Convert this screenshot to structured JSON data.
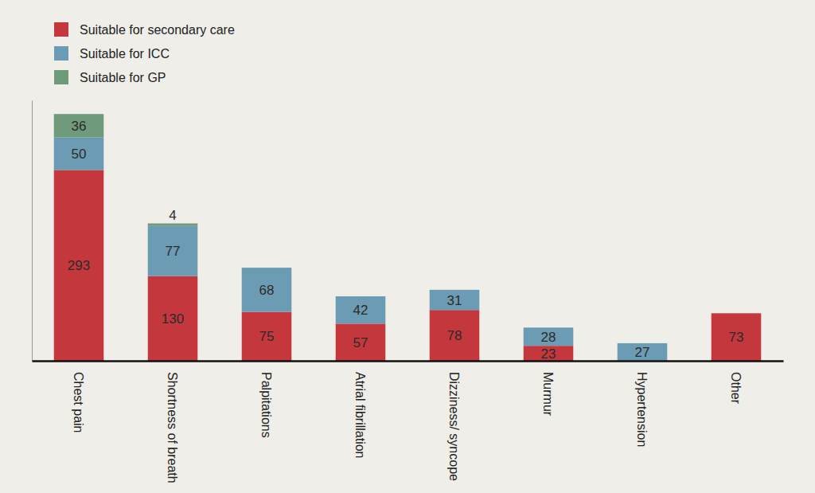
{
  "chart_data": {
    "type": "bar",
    "stacked": true,
    "data_labels": true,
    "tick_labels": "x",
    "legend": "top-left",
    "categories": [
      "Chest pain",
      "Shortness of breath",
      "Palpitations",
      "Atrial fibrillation",
      "Dizziness/ syncope",
      "Murmur",
      "Hypertension",
      "Other"
    ],
    "series": [
      {
        "name": "Suitable for secondary care",
        "color": "#c4373c",
        "values": [
          293,
          130,
          75,
          57,
          78,
          23,
          null,
          73
        ]
      },
      {
        "name": "Suitable for ICC",
        "color": "#6b9cb3",
        "values": [
          50,
          77,
          68,
          42,
          31,
          28,
          27,
          null
        ]
      },
      {
        "name": "Suitable for GP",
        "color": "#6f9a7b",
        "values": [
          36,
          4,
          null,
          null,
          null,
          null,
          null,
          null
        ]
      }
    ],
    "ylim": [
      0,
      400
    ],
    "yticks": []
  }
}
